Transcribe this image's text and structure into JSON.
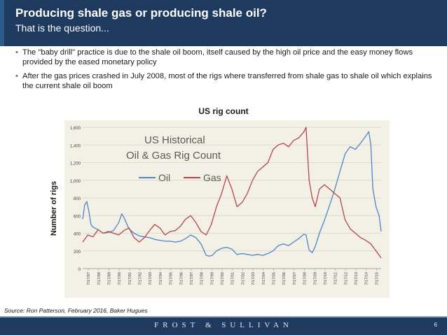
{
  "header": {
    "title": "Producing shale gas or producing shale oil?",
    "subtitle": "That is the question..."
  },
  "bullets": [
    "The \"baby drill\" practice is due to the shale oil boom, itself caused by the high oil price and the easy money flows provided by the eased monetary policy",
    "After the gas prices crashed in July 2008, most of the rigs where transferred from shale gas to shale oil which explains the current shale oil boom"
  ],
  "chart_title": "US rig count",
  "ylabel": "Number of rigs",
  "source": "Source: Ron Patterson, February 2016, Baker Hugues",
  "footer": {
    "brand": "FROST & SULLIVAN",
    "page": "6"
  },
  "colors": {
    "header": "#1f3a5f",
    "oil": "#4f86c6",
    "gas": "#b5474a",
    "plot_bg": "#f3f0e6"
  },
  "chart_data": {
    "type": "line",
    "title": "US rig count",
    "inner_title": [
      "US Historical",
      "Oil & Gas Rig Count"
    ],
    "ylabel": "Number of rigs",
    "ylim": [
      0,
      1600
    ],
    "yticks": [
      "0",
      "200",
      "400",
      "600",
      "800",
      "1,000",
      "1,200",
      "1,400",
      "1,600"
    ],
    "yticks_values": [
      0,
      200,
      400,
      600,
      800,
      1000,
      1200,
      1400,
      1600
    ],
    "xticks": [
      "7/17/87",
      "7/17/88",
      "7/17/89",
      "7/17/90",
      "7/17/91",
      "7/17/92",
      "7/17/93",
      "7/17/94",
      "7/17/95",
      "7/17/96",
      "7/17/97",
      "7/17/98",
      "7/17/99",
      "7/17/00",
      "7/17/01",
      "7/17/02",
      "7/17/03",
      "7/17/04",
      "7/17/05",
      "7/17/06",
      "7/17/07",
      "7/17/08",
      "7/17/09",
      "7/17/10",
      "7/17/11",
      "7/17/12",
      "7/17/13",
      "7/17/14",
      "7/17/15"
    ],
    "grid": true,
    "legend": "inside top-left",
    "series": [
      {
        "name": "Oil",
        "x": [
          1987.0,
          1987.2,
          1987.4,
          1987.6,
          1987.8,
          1988.0,
          1988.5,
          1989.0,
          1989.5,
          1990.0,
          1990.5,
          1990.8,
          1991.0,
          1991.5,
          1992.0,
          1992.5,
          1993.0,
          1993.5,
          1994.0,
          1994.5,
          1995.0,
          1995.5,
          1996.0,
          1996.5,
          1997.0,
          1997.5,
          1998.0,
          1998.5,
          1999.0,
          1999.3,
          1999.6,
          2000.0,
          2000.5,
          2001.0,
          2001.5,
          2002.0,
          2002.5,
          2003.0,
          2003.5,
          2004.0,
          2004.5,
          2005.0,
          2005.5,
          2006.0,
          2006.5,
          2007.0,
          2007.5,
          2008.0,
          2008.5,
          2008.7,
          2009.0,
          2009.3,
          2009.6,
          2010.0,
          2010.5,
          2011.0,
          2011.5,
          2012.0,
          2012.5,
          2013.0,
          2013.5,
          2014.0,
          2014.5,
          2014.8,
          2015.0,
          2015.2,
          2015.5,
          2015.8,
          2016.0
        ],
        "values": [
          560,
          720,
          760,
          650,
          500,
          470,
          440,
          400,
          410,
          430,
          520,
          620,
          580,
          450,
          400,
          370,
          360,
          350,
          330,
          320,
          310,
          310,
          300,
          310,
          340,
          380,
          350,
          280,
          150,
          140,
          150,
          200,
          230,
          240,
          220,
          160,
          170,
          160,
          150,
          160,
          150,
          170,
          200,
          260,
          280,
          260,
          300,
          340,
          390,
          380,
          210,
          180,
          250,
          400,
          550,
          720,
          900,
          1100,
          1300,
          1380,
          1350,
          1420,
          1500,
          1550,
          1400,
          900,
          700,
          600,
          420
        ]
      },
      {
        "name": "Gas",
        "x": [
          1987.0,
          1987.5,
          1988.0,
          1988.5,
          1989.0,
          1989.5,
          1990.0,
          1990.5,
          1991.0,
          1991.5,
          1992.0,
          1992.5,
          1993.0,
          1993.5,
          1994.0,
          1994.5,
          1995.0,
          1995.5,
          1996.0,
          1996.5,
          1997.0,
          1997.5,
          1998.0,
          1998.5,
          1999.0,
          1999.5,
          2000.0,
          2000.5,
          2001.0,
          2001.5,
          2002.0,
          2002.5,
          2003.0,
          2003.5,
          2004.0,
          2004.5,
          2005.0,
          2005.5,
          2006.0,
          2006.5,
          2007.0,
          2007.5,
          2008.0,
          2008.5,
          2008.7,
          2009.0,
          2009.3,
          2009.6,
          2010.0,
          2010.5,
          2011.0,
          2011.5,
          2012.0,
          2012.5,
          2013.0,
          2013.5,
          2014.0,
          2014.5,
          2015.0,
          2015.5,
          2016.0
        ],
        "values": [
          300,
          380,
          360,
          440,
          400,
          420,
          400,
          380,
          430,
          460,
          350,
          300,
          350,
          430,
          500,
          460,
          380,
          420,
          430,
          480,
          560,
          600,
          520,
          420,
          380,
          500,
          700,
          850,
          1050,
          900,
          700,
          750,
          850,
          1000,
          1100,
          1150,
          1200,
          1350,
          1400,
          1420,
          1380,
          1450,
          1480,
          1550,
          1600,
          1000,
          800,
          700,
          900,
          950,
          900,
          850,
          800,
          550,
          450,
          400,
          350,
          320,
          280,
          200,
          120
        ]
      }
    ]
  }
}
